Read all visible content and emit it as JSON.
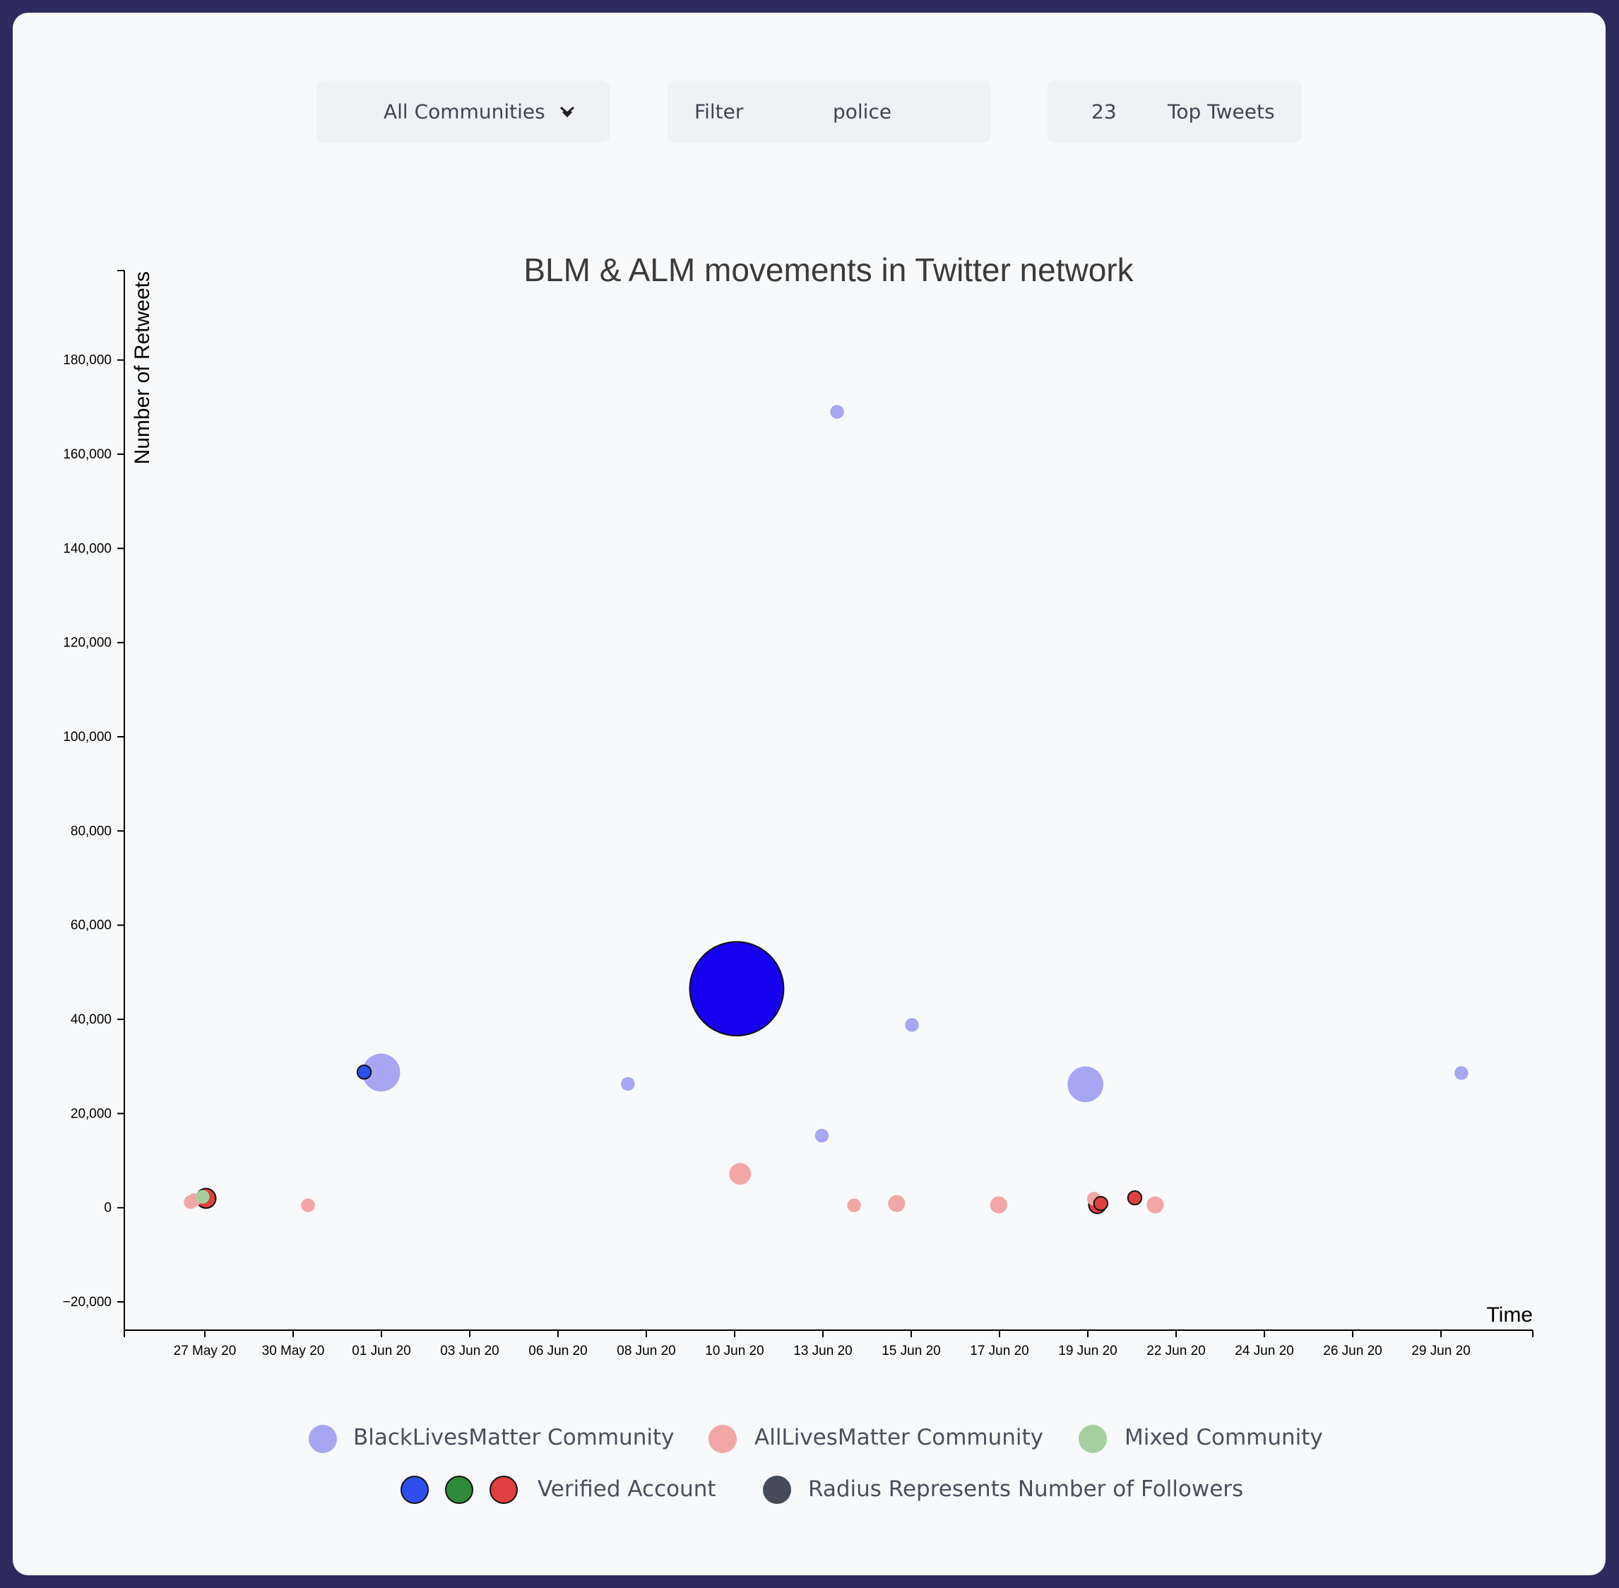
{
  "controls": {
    "community_select": "All Communities",
    "filter_label": "Filter",
    "filter_value": "police",
    "top_count": "23",
    "top_label": "Top Tweets"
  },
  "legend": {
    "blm": "BlackLivesMatter Community",
    "alm": "AllLivesMatter Community",
    "mixed": "Mixed Community",
    "verified": "Verified Account",
    "radius": "Radius Represents Number of Followers"
  },
  "colors": {
    "blm": "#a6a6f2",
    "alm": "#f2a6a6",
    "mixed": "#a6cfa0",
    "verified_blm": "#2f4ef0",
    "verified_mixed": "#2e8b3a",
    "verified_alm": "#e04040",
    "radius": "#454b58",
    "big_verified_blm": "#1600f0"
  },
  "chart_data": {
    "type": "scatter",
    "title": "BLM & ALM movements in Twitter network",
    "xlabel": "Time",
    "ylabel": "Number of Retweets",
    "x_ticks": [
      "27 May 20",
      "30 May 20",
      "01 Jun 20",
      "03 Jun 20",
      "06 Jun 20",
      "08 Jun 20",
      "10 Jun 20",
      "13 Jun 20",
      "15 Jun 20",
      "17 Jun 20",
      "19 Jun 20",
      "22 Jun 20",
      "24 Jun 20",
      "26 Jun 20",
      "29 Jun 20"
    ],
    "y_ticks": [
      -20000,
      0,
      20000,
      40000,
      60000,
      80000,
      100000,
      120000,
      140000,
      160000,
      180000
    ],
    "ylim": [
      -26000,
      199000
    ],
    "xlim": [
      "2020-05-26T12:00",
      "2020-06-30T00:00"
    ],
    "grid": false,
    "legend_position": "bottom",
    "points": [
      {
        "date": "2020-05-28T03:00",
        "retweets": 1200,
        "community": "alm",
        "verified": false,
        "followers": 1
      },
      {
        "date": "2020-05-28T05:00",
        "retweets": 1600,
        "community": "alm",
        "verified": false,
        "followers": 1
      },
      {
        "date": "2020-05-28T10:00",
        "retweets": 2300,
        "community": "mixed",
        "verified": false,
        "followers": 1
      },
      {
        "date": "2020-05-28T12:00",
        "retweets": 2000,
        "community": "alm",
        "verified": true,
        "followers": 3
      },
      {
        "date": "2020-05-31T00:00",
        "retweets": 500,
        "community": "alm",
        "verified": false,
        "followers": 1
      },
      {
        "date": "2020-06-01T09:00",
        "retweets": 28800,
        "community": "blm",
        "verified": true,
        "followers": 1
      },
      {
        "date": "2020-06-01T19:00",
        "retweets": 28700,
        "community": "blm",
        "verified": false,
        "followers": 16
      },
      {
        "date": "2020-06-07T20:00",
        "retweets": 26300,
        "community": "blm",
        "verified": false,
        "followers": 1
      },
      {
        "date": "2020-06-10T12:00",
        "retweets": 46500,
        "community": "blm",
        "verified": true,
        "followers": 120
      },
      {
        "date": "2020-06-10T14:00",
        "retweets": 7200,
        "community": "alm",
        "verified": false,
        "followers": 4
      },
      {
        "date": "2020-06-12T14:00",
        "retweets": 15300,
        "community": "blm",
        "verified": false,
        "followers": 1
      },
      {
        "date": "2020-06-12T23:00",
        "retweets": 169000,
        "community": "blm",
        "verified": false,
        "followers": 1
      },
      {
        "date": "2020-06-13T09:00",
        "retweets": 500,
        "community": "alm",
        "verified": false,
        "followers": 1
      },
      {
        "date": "2020-06-14T10:00",
        "retweets": 900,
        "community": "alm",
        "verified": false,
        "followers": 2
      },
      {
        "date": "2020-06-14T19:00",
        "retweets": 38800,
        "community": "blm",
        "verified": false,
        "followers": 1
      },
      {
        "date": "2020-06-16T22:00",
        "retweets": 600,
        "community": "alm",
        "verified": false,
        "followers": 2
      },
      {
        "date": "2020-06-19T01:00",
        "retweets": 26200,
        "community": "blm",
        "verified": false,
        "followers": 14
      },
      {
        "date": "2020-06-19T06:00",
        "retweets": 1900,
        "community": "alm",
        "verified": false,
        "followers": 1
      },
      {
        "date": "2020-06-19T08:00",
        "retweets": 600,
        "community": "alm",
        "verified": true,
        "followers": 2
      },
      {
        "date": "2020-06-19T10:00",
        "retweets": 900,
        "community": "alm",
        "verified": true,
        "followers": 1
      },
      {
        "date": "2020-06-20T06:00",
        "retweets": 2100,
        "community": "alm",
        "verified": true,
        "followers": 1
      },
      {
        "date": "2020-06-20T18:00",
        "retweets": 600,
        "community": "alm",
        "verified": false,
        "followers": 2
      },
      {
        "date": "2020-06-28T06:00",
        "retweets": 28600,
        "community": "blm",
        "verified": false,
        "followers": 1
      }
    ]
  }
}
